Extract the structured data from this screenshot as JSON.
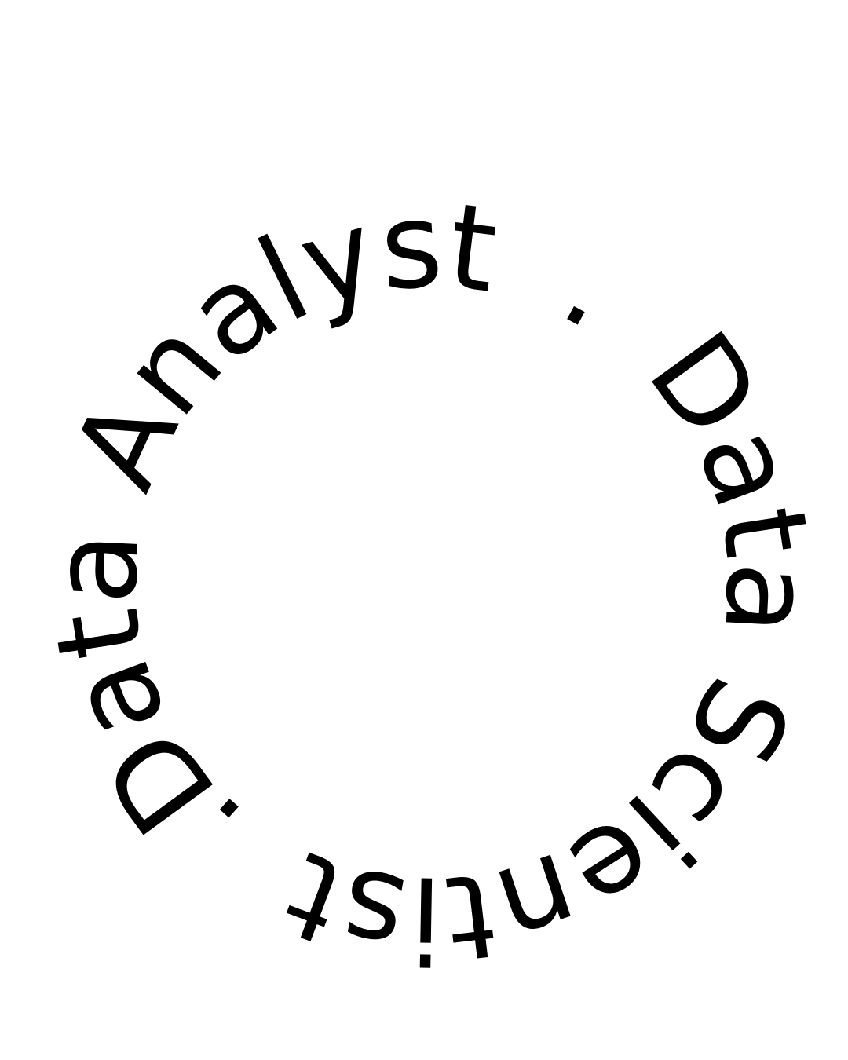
{
  "circular_text": {
    "phrase_1": "Data Analyst",
    "separator_1": ".",
    "phrase_2": "Data Scientist",
    "separator_2": "."
  },
  "colors": {
    "background": "#ffffff",
    "text": "#000000"
  }
}
